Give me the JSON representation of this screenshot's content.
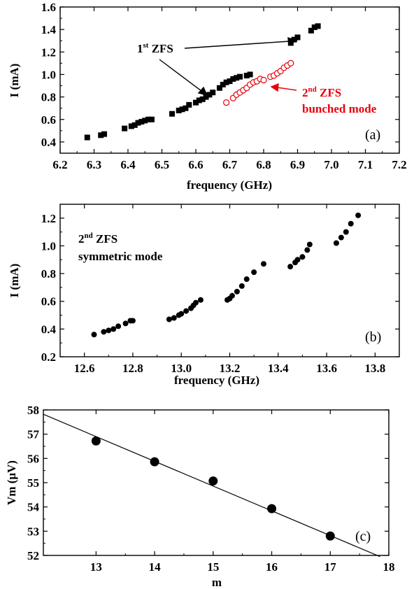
{
  "chart_data": [
    {
      "type": "scatter",
      "panel_label": "(a)",
      "xlabel": "frequency (GHz)",
      "ylabel": "I (mA)",
      "xlim": [
        6.2,
        7.2
      ],
      "ylim": [
        0.3,
        1.6
      ],
      "xticks": [
        "6.2",
        "6.3",
        "6.4",
        "6.5",
        "6.6",
        "6.7",
        "6.8",
        "6.9",
        "7.0",
        "7.1",
        "7.2"
      ],
      "yticks": [
        "0.4",
        "0.6",
        "0.8",
        "1.0",
        "1.2",
        "1.4",
        "1.6"
      ],
      "series": [
        {
          "marker": "filled-square",
          "color": "#000000",
          "points": [
            [
              6.28,
              0.44
            ],
            [
              6.32,
              0.46
            ],
            [
              6.33,
              0.47
            ],
            [
              6.39,
              0.52
            ],
            [
              6.41,
              0.54
            ],
            [
              6.42,
              0.55
            ],
            [
              6.43,
              0.57
            ],
            [
              6.44,
              0.58
            ],
            [
              6.45,
              0.59
            ],
            [
              6.46,
              0.6
            ],
            [
              6.47,
              0.6
            ],
            [
              6.53,
              0.65
            ],
            [
              6.55,
              0.68
            ],
            [
              6.56,
              0.69
            ],
            [
              6.57,
              0.7
            ],
            [
              6.58,
              0.73
            ],
            [
              6.6,
              0.75
            ],
            [
              6.61,
              0.77
            ],
            [
              6.62,
              0.78
            ],
            [
              6.63,
              0.8
            ],
            [
              6.64,
              0.82
            ],
            [
              6.65,
              0.84
            ],
            [
              6.67,
              0.88
            ],
            [
              6.68,
              0.91
            ],
            [
              6.69,
              0.93
            ],
            [
              6.7,
              0.94
            ],
            [
              6.71,
              0.96
            ],
            [
              6.72,
              0.97
            ],
            [
              6.73,
              0.98
            ],
            [
              6.75,
              0.99
            ],
            [
              6.76,
              1.0
            ],
            [
              6.88,
              1.28
            ],
            [
              6.89,
              1.31
            ],
            [
              6.9,
              1.33
            ],
            [
              6.94,
              1.39
            ],
            [
              6.95,
              1.42
            ],
            [
              6.96,
              1.43
            ]
          ]
        },
        {
          "marker": "open-circle",
          "color": "#e8000b",
          "points": [
            [
              6.69,
              0.75
            ],
            [
              6.71,
              0.79
            ],
            [
              6.72,
              0.82
            ],
            [
              6.73,
              0.84
            ],
            [
              6.74,
              0.86
            ],
            [
              6.75,
              0.88
            ],
            [
              6.76,
              0.91
            ],
            [
              6.77,
              0.93
            ],
            [
              6.78,
              0.94
            ],
            [
              6.79,
              0.96
            ],
            [
              6.8,
              0.95
            ],
            [
              6.82,
              0.98
            ],
            [
              6.83,
              0.99
            ],
            [
              6.84,
              1.01
            ],
            [
              6.85,
              1.03
            ],
            [
              6.86,
              1.06
            ],
            [
              6.87,
              1.08
            ],
            [
              6.88,
              1.1
            ]
          ]
        }
      ],
      "annotations": {
        "first_zfs": {
          "num": "1",
          "sup": "st",
          "rest": " ZFS",
          "color": "#000000"
        },
        "second_zfs": {
          "num": "2",
          "sup": "nd",
          "rest": " ZFS",
          "line2": "bunched mode",
          "color": "#e8000b"
        }
      }
    },
    {
      "type": "scatter",
      "panel_label": "(b)",
      "xlabel": "frequency (GHz)",
      "ylabel": "I (mA)",
      "xlim": [
        12.5,
        13.9
      ],
      "ylim": [
        0.2,
        1.3
      ],
      "xticks": [
        "12.6",
        "12.8",
        "13.0",
        "13.2",
        "13.4",
        "13.6",
        "13.8"
      ],
      "yticks": [
        "0.2",
        "0.4",
        "0.6",
        "0.8",
        "1.0",
        "1.2"
      ],
      "series": [
        {
          "marker": "filled-circle",
          "color": "#000000",
          "points": [
            [
              12.64,
              0.36
            ],
            [
              12.68,
              0.38
            ],
            [
              12.7,
              0.39
            ],
            [
              12.72,
              0.4
            ],
            [
              12.74,
              0.42
            ],
            [
              12.77,
              0.44
            ],
            [
              12.79,
              0.46
            ],
            [
              12.8,
              0.46
            ],
            [
              12.95,
              0.47
            ],
            [
              12.97,
              0.48
            ],
            [
              12.99,
              0.5
            ],
            [
              13.0,
              0.51
            ],
            [
              13.02,
              0.53
            ],
            [
              13.04,
              0.55
            ],
            [
              13.05,
              0.57
            ],
            [
              13.06,
              0.59
            ],
            [
              13.08,
              0.61
            ],
            [
              13.19,
              0.61
            ],
            [
              13.2,
              0.62
            ],
            [
              13.21,
              0.64
            ],
            [
              13.23,
              0.67
            ],
            [
              13.25,
              0.71
            ],
            [
              13.27,
              0.76
            ],
            [
              13.3,
              0.81
            ],
            [
              13.34,
              0.87
            ],
            [
              13.45,
              0.85
            ],
            [
              13.47,
              0.88
            ],
            [
              13.48,
              0.9
            ],
            [
              13.5,
              0.92
            ],
            [
              13.52,
              0.97
            ],
            [
              13.53,
              1.01
            ],
            [
              13.64,
              1.02
            ],
            [
              13.66,
              1.06
            ],
            [
              13.68,
              1.1
            ],
            [
              13.7,
              1.16
            ],
            [
              13.73,
              1.22
            ]
          ]
        }
      ],
      "annotations": {
        "second_zfs": {
          "num": "2",
          "sup": "nd",
          "rest": " ZFS",
          "line2": "symmetric mode",
          "color": "#000000"
        }
      }
    },
    {
      "type": "scatter",
      "panel_label": "(c)",
      "xlabel": "m",
      "ylabel": "Vm (μV)",
      "xlim": [
        12.1,
        18
      ],
      "ylim": [
        52,
        58
      ],
      "xticks": [
        "13",
        "14",
        "15",
        "16",
        "17",
        "18"
      ],
      "yticks": [
        "52",
        "53",
        "54",
        "55",
        "56",
        "57",
        "58"
      ],
      "series": [
        {
          "marker": "filled-circle-large",
          "color": "#000000",
          "points": [
            [
              13,
              56.72
            ],
            [
              14,
              55.86
            ],
            [
              15,
              55.07
            ],
            [
              16,
              53.93
            ],
            [
              17,
              52.8
            ]
          ]
        }
      ],
      "fit_line": [
        [
          12.1,
          57.82
        ],
        [
          17.85,
          51.95
        ]
      ]
    }
  ]
}
